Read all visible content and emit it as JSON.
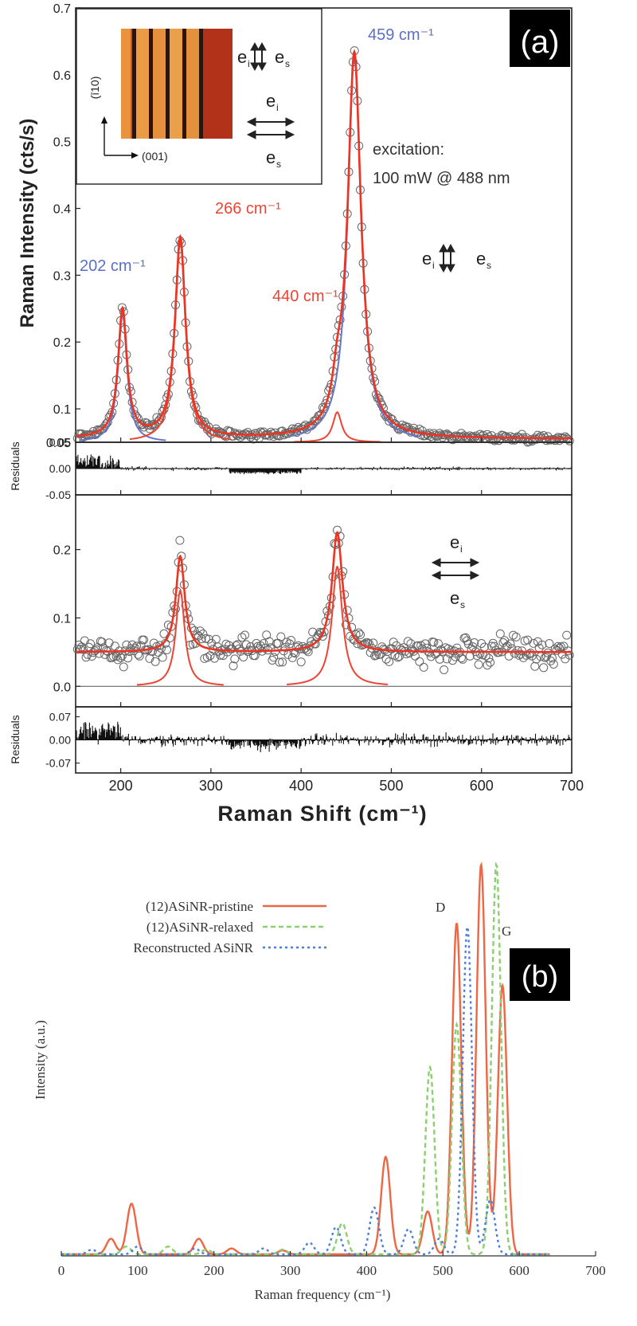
{
  "chart_data": [
    {
      "panel_label": "(a)",
      "type": "scatter",
      "x_axis": {
        "label": "Raman Shift (cm⁻¹)",
        "xlim": [
          150,
          700
        ],
        "ticks": [
          200,
          300,
          400,
          500,
          600,
          700
        ],
        "tick_labels": [
          "200",
          "300",
          "400",
          "500",
          "600",
          "700"
        ]
      },
      "top_spectrum": {
        "ylabel": "Raman Intensity (cts/s)",
        "ylim": [
          0.05,
          0.7
        ],
        "y_tick_labels": [
          "0.05",
          "0.1",
          "0.2",
          "0.3",
          "0.4",
          "0.5",
          "0.6",
          "0.7"
        ],
        "y_ticks": [
          0.05,
          0.1,
          0.2,
          0.3,
          0.4,
          0.5,
          0.6,
          0.7
        ],
        "background": 0.055,
        "polarization_label": {
          "i": "e",
          "i_sub": "i",
          "s": "e",
          "s_sub": "s",
          "arrows": "vertical"
        },
        "peaks": [
          {
            "center": 202,
            "height": 0.192,
            "width": 6,
            "color": "#6677c8",
            "label": "202 cm⁻¹"
          },
          {
            "center": 266,
            "height": 0.3,
            "width": 7,
            "color": "#ee4433",
            "label": "266 cm⁻¹"
          },
          {
            "center": 440,
            "height": 0.045,
            "width": 6,
            "color": "#ee4433",
            "label": "440 cm⁻¹"
          },
          {
            "center": 459,
            "height": 0.575,
            "width": 9,
            "color": "#6677c8",
            "label": "459 cm⁻¹"
          }
        ],
        "excitation_text": [
          "excitation:",
          "100 mW @  488 nm"
        ]
      },
      "top_residuals": {
        "ylabel": "Residuals",
        "ylim": [
          -0.05,
          0.05
        ],
        "y_tick_labels": [
          "0.05",
          "0.00",
          "-0.05"
        ],
        "y_ticks": [
          0.05,
          0.0,
          -0.05
        ]
      },
      "bottom_spectrum": {
        "ylim": [
          -0.03,
          0.28
        ],
        "y_tick_labels": [
          "0.0",
          "0.1",
          "0.2"
        ],
        "y_ticks": [
          0.0,
          0.1,
          0.2
        ],
        "background": 0.05,
        "polarization_label": {
          "i": "e",
          "i_sub": "i",
          "s": "e",
          "s_sub": "s",
          "arrows": "horizontal"
        },
        "peaks": [
          {
            "center": 266,
            "height": 0.14,
            "width": 6,
            "color": "#ee4433"
          },
          {
            "center": 440,
            "height": 0.175,
            "width": 7,
            "color": "#ee4433"
          }
        ]
      },
      "bottom_residuals": {
        "ylabel": "Residuals",
        "ylim": [
          -0.1,
          0.1
        ],
        "y_tick_labels": [
          "0.07",
          "0.00",
          "-0.07"
        ],
        "y_ticks": [
          0.07,
          0.0,
          -0.07
        ]
      },
      "inset": {
        "axis_vertical": "(ī10)",
        "axis_horizontal": "(001)",
        "polarization_parallel": {
          "i": "e",
          "i_sub": "i",
          "s": "e",
          "s_sub": "s"
        },
        "polarization_cross": {
          "i": "e",
          "i_sub": "i",
          "s": "e",
          "s_sub": "s"
        }
      }
    },
    {
      "panel_label": "(b)",
      "type": "line",
      "xlabel": "Raman frequency (cm⁻¹)",
      "ylabel": "Intensity (a.u.)",
      "xlim": [
        0,
        700
      ],
      "x_ticks": [
        0,
        100,
        200,
        300,
        400,
        500,
        600,
        700
      ],
      "x_tick_labels": [
        "0",
        "100",
        "200",
        "300",
        "400",
        "500",
        "600",
        "700"
      ],
      "ylim": [
        0,
        1.0
      ],
      "annotations": [
        {
          "text": "D",
          "x": 527,
          "y": 0.93
        },
        {
          "text": "G",
          "x": 580,
          "y": 0.93
        }
      ],
      "legend": "top-left",
      "series": [
        {
          "name": "(12)ASiNR-pristine",
          "color": "#ee6644",
          "dash": "solid",
          "peaks": [
            {
              "x": 65,
              "y": 0.04
            },
            {
              "x": 92,
              "y": 0.13
            },
            {
              "x": 180,
              "y": 0.04
            },
            {
              "x": 223,
              "y": 0.015
            },
            {
              "x": 290,
              "y": 0.01
            },
            {
              "x": 425,
              "y": 0.25
            },
            {
              "x": 480,
              "y": 0.11
            },
            {
              "x": 518,
              "y": 0.85
            },
            {
              "x": 550,
              "y": 1.0
            },
            {
              "x": 578,
              "y": 0.69
            }
          ]
        },
        {
          "name": "(12)ASiNR-relaxed",
          "color": "#8ccf6e",
          "dash": "6,4",
          "peaks": [
            {
              "x": 85,
              "y": 0.02
            },
            {
              "x": 140,
              "y": 0.02
            },
            {
              "x": 190,
              "y": 0.012
            },
            {
              "x": 290,
              "y": 0.012
            },
            {
              "x": 368,
              "y": 0.08
            },
            {
              "x": 483,
              "y": 0.48
            },
            {
              "x": 518,
              "y": 0.59
            },
            {
              "x": 570,
              "y": 1.0
            }
          ]
        },
        {
          "name": "Reconstructed ASiNR",
          "color": "#4a7ed8",
          "dash": "3,4",
          "peaks": [
            {
              "x": 40,
              "y": 0.012
            },
            {
              "x": 100,
              "y": 0.02
            },
            {
              "x": 175,
              "y": 0.015
            },
            {
              "x": 265,
              "y": 0.015
            },
            {
              "x": 325,
              "y": 0.03
            },
            {
              "x": 360,
              "y": 0.07
            },
            {
              "x": 410,
              "y": 0.12
            },
            {
              "x": 455,
              "y": 0.065
            },
            {
              "x": 495,
              "y": 0.04
            },
            {
              "x": 532,
              "y": 0.84
            },
            {
              "x": 562,
              "y": 0.14
            }
          ]
        }
      ]
    }
  ]
}
